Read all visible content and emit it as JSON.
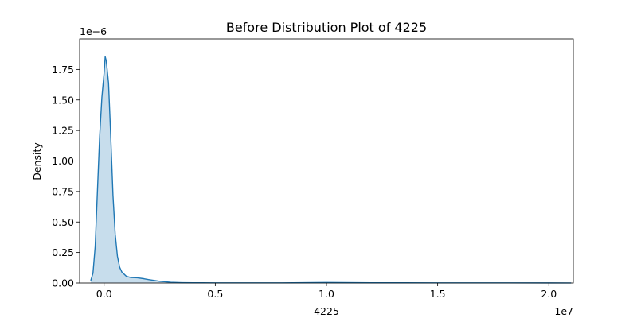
{
  "chart_data": {
    "type": "area",
    "title": "Before Distribution Plot of 4225",
    "xlabel": "4225",
    "ylabel": "Density",
    "x_multiplier_label": "1e7",
    "y_multiplier_label": "1e−6",
    "x_unit_scale": 10000000,
    "y_unit_scale": 1e-06,
    "xlim": [
      -0.11,
      2.11
    ],
    "ylim": [
      0,
      2.0
    ],
    "x_ticks": [
      0.0,
      0.5,
      1.0,
      1.5,
      2.0
    ],
    "x_tick_labels": [
      "0.0",
      "0.5",
      "1.0",
      "1.5",
      "2.0"
    ],
    "y_ticks": [
      0.0,
      0.25,
      0.5,
      0.75,
      1.0,
      1.25,
      1.5,
      1.75
    ],
    "y_tick_labels": [
      "0.00",
      "0.25",
      "0.50",
      "0.75",
      "1.00",
      "1.25",
      "1.50",
      "1.75"
    ],
    "line_color": "#1f77b4",
    "fill_color": "#1f77b4",
    "fill_opacity": 0.25,
    "grid": false,
    "legend": "none",
    "series": [
      {
        "x": [
          -0.06,
          -0.05,
          -0.04,
          -0.03,
          -0.02,
          -0.01,
          0.0,
          0.005,
          0.01,
          0.02,
          0.03,
          0.04,
          0.05,
          0.06,
          0.07,
          0.08,
          0.1,
          0.12,
          0.15,
          0.18,
          0.2,
          0.25,
          0.3,
          0.35,
          0.4,
          0.5,
          0.6,
          0.8,
          1.0,
          1.2,
          1.5,
          1.8,
          2.0,
          2.1
        ],
        "y": [
          0.02,
          0.08,
          0.3,
          0.75,
          1.2,
          1.52,
          1.72,
          1.855,
          1.82,
          1.64,
          1.2,
          0.72,
          0.4,
          0.22,
          0.13,
          0.09,
          0.055,
          0.045,
          0.043,
          0.035,
          0.028,
          0.014,
          0.006,
          0.003,
          0.002,
          0.0015,
          0.001,
          0.0015,
          0.004,
          0.002,
          0.0015,
          0.001,
          0.0008,
          0.0005
        ]
      }
    ]
  }
}
